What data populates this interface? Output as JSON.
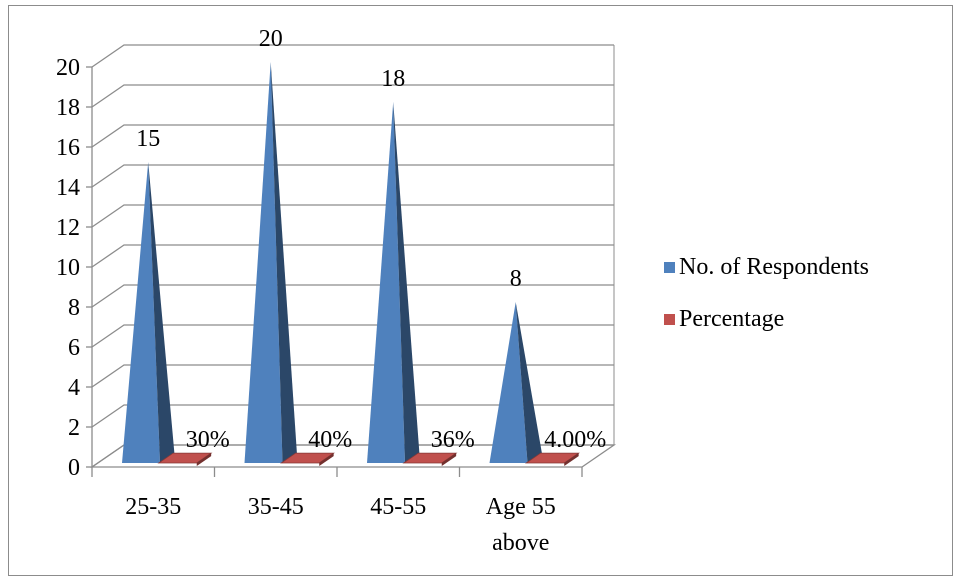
{
  "chart_data": {
    "type": "bar",
    "style": "3d-pyramid",
    "categories": [
      [
        "25-35"
      ],
      [
        "35-45"
      ],
      [
        "45-55"
      ],
      [
        "Age 55",
        "above"
      ]
    ],
    "series": [
      {
        "name": "No. of Respondents",
        "color": "#4f81bd",
        "values": [
          15,
          20,
          18,
          8
        ],
        "labels": [
          "15",
          "20",
          "18",
          "8"
        ]
      },
      {
        "name": "Percentage",
        "color": "#c0504d",
        "values": [
          0.3,
          0.4,
          0.36,
          0.04
        ],
        "labels": [
          "30%",
          "40%",
          "36%",
          "4.00%"
        ]
      }
    ],
    "y_ticks": [
      "0",
      "2",
      "4",
      "6",
      "8",
      "10",
      "12",
      "14",
      "16",
      "18",
      "20"
    ],
    "ylim": [
      0,
      20
    ],
    "grid": true,
    "legend_position": "right"
  }
}
